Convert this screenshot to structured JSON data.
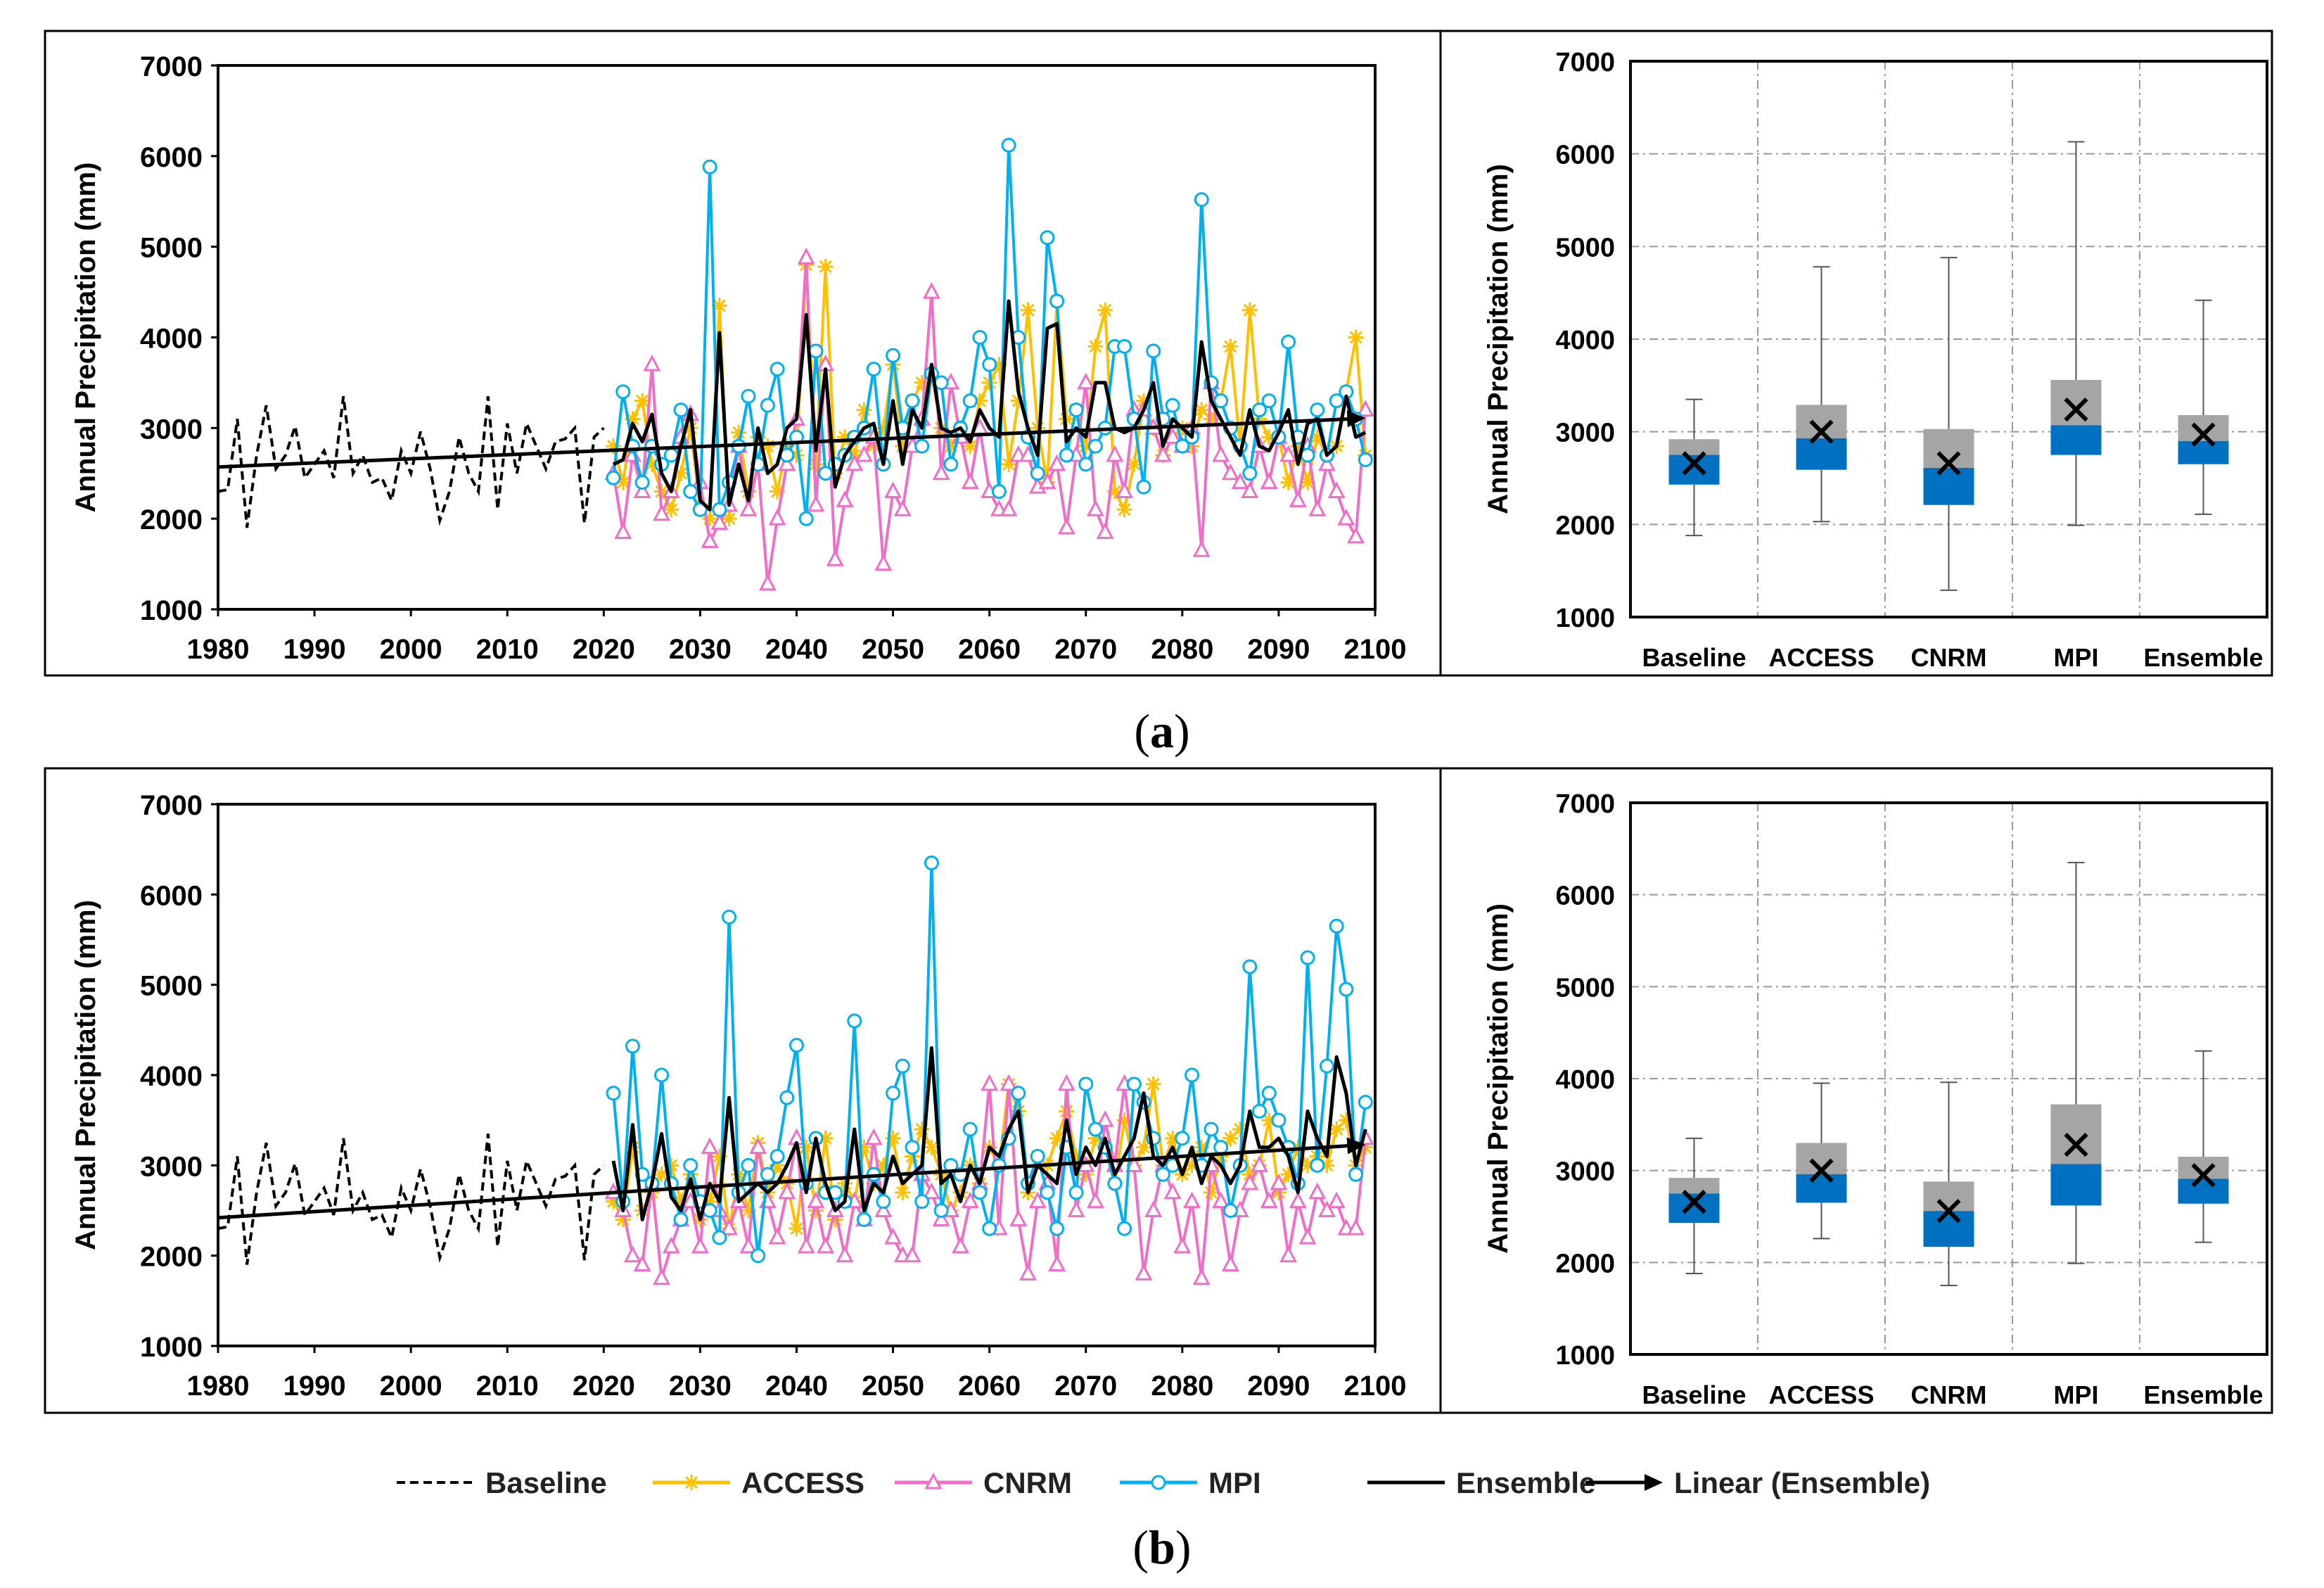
{
  "figure": {
    "panels": [
      {
        "label_open": "(",
        "label_letter": "a",
        "label_close": ")"
      },
      {
        "label_open": "(",
        "label_letter": "b",
        "label_close": ")"
      }
    ]
  },
  "legend": [
    {
      "name": "Baseline",
      "color": "#000000",
      "style": "dashed",
      "marker": "none"
    },
    {
      "name": "ACCESS",
      "color": "#FFC000",
      "style": "solid",
      "marker": "star"
    },
    {
      "name": "CNRM",
      "color": "#F06EC8",
      "style": "solid",
      "marker": "triangle"
    },
    {
      "name": "MPI",
      "color": "#00B0F0",
      "style": "solid",
      "marker": "circle"
    },
    {
      "name": "Ensemble",
      "color": "#000000",
      "style": "solid",
      "marker": "none"
    },
    {
      "name": "Linear (Ensemble)",
      "color": "#000000",
      "style": "arrow",
      "marker": "none"
    }
  ],
  "chart_data": [
    {
      "type": "line",
      "panel": "a",
      "ylabel": "Annual Precipitation (mm)",
      "xlim": [
        1980,
        2100
      ],
      "ylim": [
        1000,
        7000
      ],
      "xticks": [
        1980,
        1990,
        2000,
        2010,
        2020,
        2030,
        2040,
        2050,
        2060,
        2070,
        2080,
        2090,
        2100
      ],
      "yticks": [
        1000,
        2000,
        3000,
        4000,
        5000,
        6000,
        7000
      ],
      "baseline": {
        "name": "Baseline",
        "start": 1980,
        "values": [
          2300,
          2320,
          3100,
          1900,
          2700,
          3250,
          2550,
          2700,
          3020,
          2450,
          2600,
          2750,
          2450,
          3350,
          2500,
          2700,
          2400,
          2450,
          2200,
          2750,
          2500,
          2960,
          2550,
          1980,
          2300,
          2900,
          2500,
          2300,
          3350,
          2100,
          3050,
          2500,
          3050,
          2800,
          2550,
          2850,
          2880,
          3000,
          1950,
          2900,
          3000
        ]
      },
      "series": [
        {
          "name": "ACCESS",
          "start": 2021,
          "values": [
            2800,
            2400,
            3100,
            3300,
            2600,
            2300,
            2100,
            2500,
            3000,
            2100,
            2000,
            4350,
            2000,
            2950,
            2300,
            2900,
            2800,
            2300,
            2800,
            2700,
            4800,
            2600,
            4780,
            2500,
            2900,
            2700,
            3200,
            2800,
            3000,
            3700,
            2800,
            3300,
            3500,
            3600,
            3000,
            2800,
            3000,
            2800,
            3300,
            3500,
            3700,
            2600,
            3300,
            4300,
            3000,
            2400,
            4400,
            3100,
            3200,
            2800,
            3900,
            4300,
            2300,
            2100,
            2600,
            3300,
            3000,
            2700,
            2900,
            3000,
            2800,
            3200,
            3100,
            3300,
            3900,
            2800,
            4300,
            3100,
            2900,
            2900,
            2400,
            2800,
            2400,
            2900,
            2700,
            2800,
            3400,
            4000,
            2700
          ]
        },
        {
          "name": "CNRM",
          "start": 2021,
          "values": [
            2500,
            1850,
            2700,
            2300,
            3700,
            2050,
            2300,
            2900,
            3150,
            2400,
            1750,
            1950,
            2150,
            2800,
            2100,
            2600,
            1280,
            2000,
            2600,
            3100,
            4880,
            2150,
            3700,
            1550,
            2200,
            2600,
            2700,
            2900,
            1500,
            2300,
            2100,
            2800,
            3100,
            4500,
            2500,
            3500,
            2900,
            2400,
            3000,
            2300,
            2100,
            2100,
            2700,
            2700,
            2350,
            2400,
            2600,
            1900,
            2700,
            3500,
            2100,
            1850,
            2700,
            2300,
            3200,
            3200,
            3000,
            2700,
            2900,
            2800,
            3000,
            1650,
            3500,
            2700,
            2500,
            2400,
            2300,
            2800,
            2400,
            2900,
            2700,
            2200,
            2800,
            2100,
            2600,
            2300,
            2000,
            1800,
            3200
          ]
        },
        {
          "name": "MPI",
          "start": 2021,
          "values": [
            2450,
            3400,
            2800,
            2400,
            2800,
            2600,
            2700,
            3200,
            2300,
            2100,
            5880,
            2100,
            2400,
            2800,
            3350,
            2600,
            3250,
            3650,
            2700,
            2900,
            2000,
            3850,
            2500,
            2600,
            2700,
            2900,
            3000,
            3650,
            2600,
            3800,
            3000,
            3300,
            2800,
            3600,
            3500,
            2600,
            3000,
            3300,
            4000,
            3700,
            2300,
            6120,
            4000,
            2900,
            2500,
            5100,
            4400,
            2700,
            3200,
            2600,
            2800,
            3000,
            3900,
            3900,
            3100,
            2350,
            3850,
            3100,
            3250,
            2800,
            2900,
            5520,
            3500,
            3300,
            3000,
            2800,
            2500,
            3200,
            3300,
            2900,
            3950,
            2900,
            2700,
            3200,
            2700,
            3300,
            3400,
            3100,
            2650
          ]
        },
        {
          "name": "Ensemble",
          "start": 2021,
          "values": [
            2600,
            2650,
            3050,
            2850,
            3150,
            2500,
            2300,
            2800,
            3200,
            2200,
            2100,
            4050,
            2150,
            2600,
            2200,
            3000,
            2500,
            2600,
            3000,
            3100,
            4250,
            2750,
            3650,
            2350,
            2700,
            2850,
            3000,
            3050,
            2600,
            3300,
            2600,
            3200,
            3000,
            3700,
            3000,
            2950,
            3000,
            2850,
            3200,
            3000,
            2900,
            4400,
            3400,
            3000,
            2700,
            4100,
            4150,
            2850,
            3000,
            2900,
            3500,
            3500,
            3000,
            2950,
            3000,
            3200,
            3500,
            2800,
            3100,
            3000,
            2900,
            3950,
            3300,
            3100,
            2900,
            2700,
            3200,
            2800,
            2750,
            2950,
            3200,
            2600,
            3050,
            3100,
            2700,
            2800,
            3350,
            2900,
            2950
          ]
        }
      ],
      "trend": {
        "name": "Linear (Ensemble)",
        "x": [
          1980,
          2099
        ],
        "y": [
          2570,
          3110
        ]
      }
    },
    {
      "type": "box",
      "panel": "a",
      "ylabel": "Annual Precipitation (mm)",
      "ylim": [
        1000,
        7000
      ],
      "yticks": [
        1000,
        2000,
        3000,
        4000,
        5000,
        6000,
        7000
      ],
      "categories": [
        "Baseline",
        "ACCESS",
        "CNRM",
        "MPI",
        "Ensemble"
      ],
      "boxes": [
        {
          "min": 1880,
          "q1": 2430,
          "median": 2750,
          "q3": 2920,
          "max": 3350,
          "mean": 2660
        },
        {
          "min": 2030,
          "q1": 2590,
          "median": 2930,
          "q3": 3290,
          "max": 4780,
          "mean": 3000
        },
        {
          "min": 1290,
          "q1": 2210,
          "median": 2610,
          "q3": 3030,
          "max": 4880,
          "mean": 2660
        },
        {
          "min": 1990,
          "q1": 2750,
          "median": 3070,
          "q3": 3560,
          "max": 6130,
          "mean": 3240
        },
        {
          "min": 2110,
          "q1": 2650,
          "median": 2900,
          "q3": 3180,
          "max": 4420,
          "mean": 2970
        }
      ]
    },
    {
      "type": "line",
      "panel": "b",
      "ylabel": "Annual Precipitation (mm)",
      "xlim": [
        1980,
        2100
      ],
      "ylim": [
        1000,
        7000
      ],
      "xticks": [
        1980,
        1990,
        2000,
        2010,
        2020,
        2030,
        2040,
        2050,
        2060,
        2070,
        2080,
        2090,
        2100
      ],
      "yticks": [
        1000,
        2000,
        3000,
        4000,
        5000,
        6000,
        7000
      ],
      "baseline": {
        "name": "Baseline",
        "start": 1980,
        "values": [
          2300,
          2320,
          3100,
          1900,
          2700,
          3250,
          2550,
          2700,
          3020,
          2450,
          2600,
          2750,
          2450,
          3300,
          2500,
          2700,
          2400,
          2450,
          2200,
          2750,
          2500,
          2960,
          2550,
          1980,
          2300,
          2900,
          2500,
          2300,
          3350,
          2100,
          3050,
          2500,
          3050,
          2800,
          2550,
          2850,
          2880,
          3000,
          1950,
          2900,
          3000
        ]
      },
      "series": [
        {
          "name": "ACCESS",
          "start": 2021,
          "values": [
            2600,
            2400,
            3200,
            2500,
            2700,
            2900,
            3000,
            2600,
            2900,
            2400,
            2600,
            3100,
            2300,
            2900,
            2500,
            3250,
            2700,
            3000,
            2800,
            2300,
            3200,
            2500,
            3300,
            2400,
            2800,
            2600,
            3200,
            2800,
            3000,
            3300,
            2700,
            3100,
            3400,
            3200,
            2900,
            2500,
            2700,
            3000,
            2800,
            3200,
            3000,
            3900,
            3600,
            2700,
            3100,
            3000,
            3300,
            3600,
            3100,
            2900,
            3300,
            3200,
            2800,
            3500,
            3000,
            3200,
            3900,
            3000,
            3300,
            2900,
            3000,
            3200,
            2700,
            3100,
            3300,
            3400,
            2900,
            3000,
            3500,
            2700,
            2900,
            3200,
            3000,
            3100,
            3000,
            3400,
            3500,
            3000,
            3200
          ]
        },
        {
          "name": "CNRM",
          "start": 2021,
          "values": [
            2700,
            2500,
            2000,
            1900,
            2800,
            1750,
            2100,
            2400,
            2600,
            2100,
            3200,
            2500,
            2300,
            2600,
            2100,
            3200,
            2600,
            2200,
            2700,
            3300,
            2100,
            2600,
            2100,
            2500,
            2000,
            2600,
            2400,
            3300,
            2500,
            2200,
            2000,
            2000,
            2900,
            2700,
            2400,
            2500,
            2100,
            2600,
            2800,
            3900,
            2300,
            3900,
            2400,
            1800,
            2600,
            2800,
            1900,
            3900,
            2500,
            3000,
            2600,
            3500,
            3000,
            3900,
            3000,
            1800,
            2500,
            3000,
            2700,
            2100,
            2600,
            1750,
            3000,
            2600,
            1900,
            2500,
            2800,
            3000,
            2600,
            2800,
            2000,
            2600,
            2200,
            2700,
            2500,
            2600,
            2300,
            2300,
            3300
          ]
        },
        {
          "name": "MPI",
          "start": 2021,
          "values": [
            3800,
            2600,
            4320,
            2900,
            2800,
            4000,
            2800,
            2400,
            3000,
            2600,
            2500,
            2200,
            5750,
            2700,
            3000,
            2000,
            2900,
            3100,
            3750,
            4330,
            2800,
            3300,
            2700,
            2700,
            2600,
            4600,
            2400,
            2900,
            2600,
            3800,
            4100,
            3200,
            2600,
            6350,
            2500,
            3000,
            2900,
            3400,
            2700,
            2300,
            3000,
            3300,
            3800,
            2800,
            3100,
            2700,
            2300,
            3200,
            2700,
            3900,
            3400,
            3200,
            2800,
            2300,
            3900,
            3700,
            3300,
            2900,
            3000,
            3300,
            4000,
            3000,
            3400,
            3200,
            2500,
            3000,
            5200,
            3600,
            3800,
            3500,
            3200,
            2800,
            5300,
            3000,
            4100,
            5650,
            4950,
            2900,
            3700
          ]
        },
        {
          "name": "Ensemble",
          "start": 2021,
          "values": [
            3050,
            2500,
            3450,
            2400,
            2800,
            3350,
            2650,
            2500,
            2850,
            2400,
            2800,
            2600,
            3750,
            2600,
            2700,
            2800,
            2700,
            2800,
            3000,
            3250,
            2700,
            3300,
            2800,
            2500,
            2600,
            3400,
            2500,
            2800,
            2700,
            3100,
            2800,
            2900,
            3000,
            4300,
            2800,
            2900,
            2600,
            3000,
            2800,
            3200,
            3100,
            3400,
            3600,
            2700,
            3000,
            2900,
            2800,
            3500,
            2900,
            3200,
            3000,
            3300,
            2900,
            3100,
            3300,
            3800,
            3100,
            3000,
            3200,
            2900,
            3200,
            2800,
            3100,
            3000,
            2800,
            3000,
            3600,
            3200,
            3200,
            3300,
            3100,
            2700,
            3600,
            3300,
            3100,
            4200,
            3800,
            3000,
            3400
          ]
        }
      ],
      "trend": {
        "name": "Linear (Ensemble)",
        "x": [
          1980,
          2099
        ],
        "y": [
          2420,
          3230
        ]
      }
    },
    {
      "type": "box",
      "panel": "b",
      "ylabel": "Annual Precipitation (mm)",
      "ylim": [
        1000,
        7000
      ],
      "yticks": [
        1000,
        2000,
        3000,
        4000,
        5000,
        6000,
        7000
      ],
      "categories": [
        "Baseline",
        "ACCESS",
        "CNRM",
        "MPI",
        "Ensemble"
      ],
      "boxes": [
        {
          "min": 1880,
          "q1": 2430,
          "median": 2750,
          "q3": 2920,
          "max": 3350,
          "mean": 2660
        },
        {
          "min": 2260,
          "q1": 2650,
          "median": 2960,
          "q3": 3300,
          "max": 3950,
          "mean": 3000
        },
        {
          "min": 1750,
          "q1": 2170,
          "median": 2560,
          "q3": 2880,
          "max": 3960,
          "mean": 2560
        },
        {
          "min": 1990,
          "q1": 2620,
          "median": 3070,
          "q3": 3720,
          "max": 6350,
          "mean": 3280
        },
        {
          "min": 2220,
          "q1": 2640,
          "median": 2910,
          "q3": 3150,
          "max": 4300,
          "mean": 2950
        }
      ]
    }
  ]
}
